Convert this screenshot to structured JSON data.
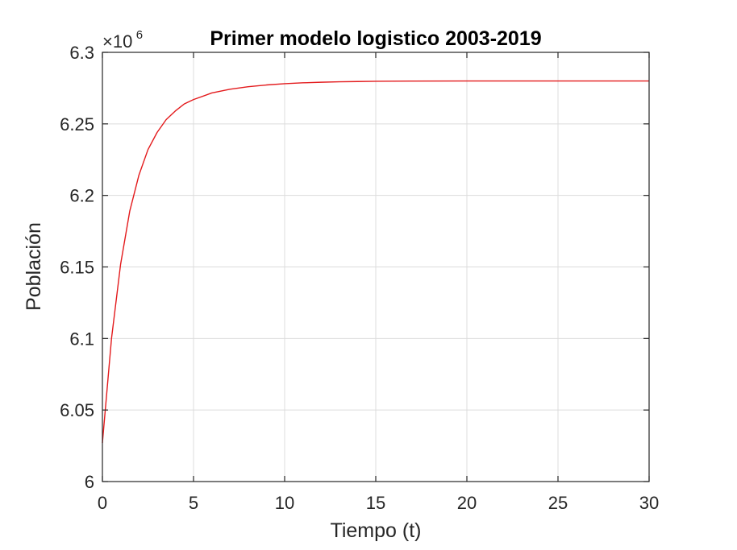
{
  "chart_data": {
    "type": "line",
    "title": "Primer modelo logistico 2003-2019",
    "xlabel": "Tiempo (t)",
    "ylabel": "Población",
    "exponent_label": {
      "base": "×10",
      "power": "6"
    },
    "xlim": [
      0,
      30
    ],
    "ylim": [
      6.0,
      6.3
    ],
    "y_scale": 1000000,
    "xticks": [
      0,
      5,
      10,
      15,
      20,
      25,
      30
    ],
    "xtick_labels": [
      "0",
      "5",
      "10",
      "15",
      "20",
      "25",
      "30"
    ],
    "yticks": [
      6.0,
      6.05,
      6.1,
      6.15,
      6.2,
      6.25,
      6.3
    ],
    "ytick_labels": [
      "6",
      "6.05",
      "6.1",
      "6.15",
      "6.2",
      "6.25",
      "6.3"
    ],
    "grid": true,
    "series": [
      {
        "color": "#e31a1c",
        "x": [
          0,
          0.5,
          1,
          1.5,
          2,
          2.5,
          3,
          3.5,
          4,
          4.5,
          5,
          6,
          7,
          8,
          9,
          10,
          11,
          12,
          13,
          14,
          15,
          17,
          20,
          25,
          30
        ],
        "y": [
          6.027,
          6.1,
          6.152,
          6.189,
          6.214,
          6.232,
          6.244,
          6.253,
          6.259,
          6.264,
          6.267,
          6.2716,
          6.2742,
          6.276,
          6.2772,
          6.2781,
          6.2787,
          6.2791,
          6.2794,
          6.2796,
          6.2798,
          6.2799,
          6.28,
          6.28,
          6.28
        ]
      }
    ]
  }
}
